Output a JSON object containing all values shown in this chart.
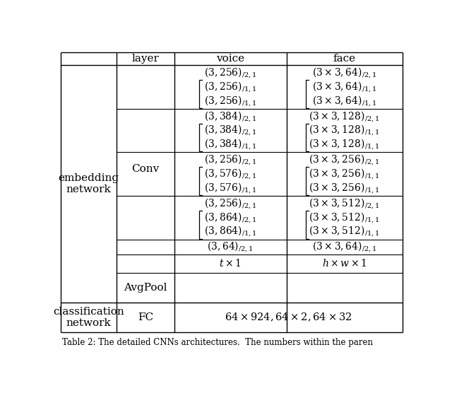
{
  "title": "Table 2: The detailed CNNs architectures.  The numbers within the paren",
  "col_headers": [
    "layer",
    "voice",
    "face"
  ],
  "emb_label": "embedding\nnetwork",
  "cls_label": "classification\nnetwork",
  "conv_label": "Conv",
  "avgpool_label": "AvgPool",
  "fc_label": "FC",
  "voice_rows": [
    [
      "$(3, 256)_{/2,1}$",
      "$(3, 256)_{/1,1}$",
      "$(3, 256)_{/1,1}$"
    ],
    [
      "$(3, 384)_{/2,1}$",
      "$(3, 384)_{/2,1}$",
      "$(3, 384)_{/1,1}$"
    ],
    [
      "$(3, 256)_{/2,1}$",
      "$(3, 576)_{/2,1}$",
      "$(3, 576)_{/1,1}$"
    ],
    [
      "$(3, 256)_{/2,1}$",
      "$(3, 864)_{/2,1}$",
      "$(3, 864)_{/1,1}$"
    ]
  ],
  "face_rows": [
    [
      "$(3 \\times 3, 64)_{/2,1}$",
      "$(3 \\times 3, 64)_{/1,1}$",
      "$(3 \\times 3, 64)_{/1,1}$"
    ],
    [
      "$(3 \\times 3, 128)_{/2,1}$",
      "$(3 \\times 3, 128)_{/1,1}$",
      "$(3 \\times 3, 128)_{/1,1}$"
    ],
    [
      "$(3 \\times 3, 256)_{/2,1}$",
      "$(3 \\times 3, 256)_{/1,1}$",
      "$(3 \\times 3, 256)_{/1,1}$"
    ],
    [
      "$(3 \\times 3, 512)_{/2,1}$",
      "$(3 \\times 3, 512)_{/1,1}$",
      "$(3 \\times 3, 512)_{/1,1}$"
    ]
  ],
  "voice_single": "$(3, 64)_{/2,1}$",
  "face_single": "$(3 \\times 3, 64)_{/2,1}$",
  "voice_avgpool": "$t \\times 1$",
  "face_avgpool": "$h \\times w \\times 1$",
  "fc_content": "$64 \\times 924, 64 \\times 2, 64 \\times 32$",
  "background_color": "#ffffff"
}
